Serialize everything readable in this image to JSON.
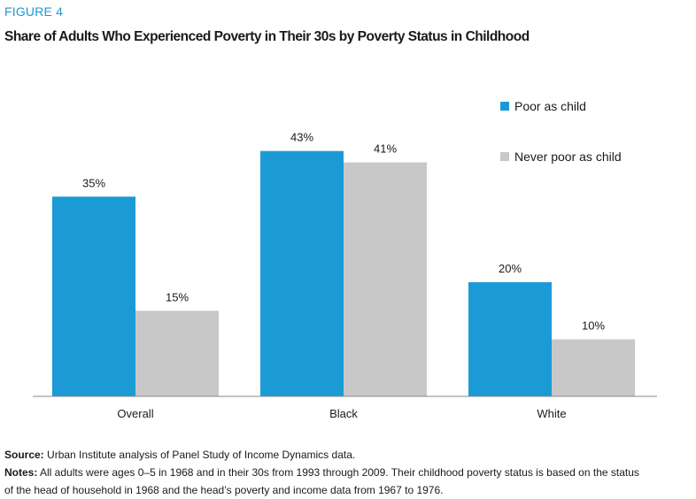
{
  "figure_label": "FIGURE 4",
  "colors": {
    "poor": "#1b9ad6",
    "never_poor": "#c8c8c8",
    "axis": "#888888"
  },
  "chart_data": {
    "type": "bar",
    "title": "Share of Adults Who Experienced Poverty in Their 30s by Poverty Status in Childhood",
    "categories": [
      "Overall",
      "Black",
      "White"
    ],
    "series": [
      {
        "name": "Poor as child",
        "values": [
          35,
          43,
          20
        ],
        "labels": [
          "35%",
          "43%",
          "20%"
        ]
      },
      {
        "name": "Never poor as child",
        "values": [
          15,
          41,
          10
        ],
        "labels": [
          "15%",
          "41%",
          "10%"
        ]
      }
    ],
    "ylim": [
      0,
      50
    ],
    "xlabel": "",
    "ylabel": "",
    "grid": false,
    "legend_position": "top-right"
  },
  "footer": {
    "source_label": "Source:",
    "source_text": "Urban Institute analysis of Panel Study of Income Dynamics data.",
    "notes_label": "Notes:",
    "notes_line1": "All adults were ages 0–5 in 1968 and in their 30s from 1993 through 2009. Their childhood poverty status is based on the status",
    "notes_line2": "of the head of household in 1968 and the head’s poverty and income data from 1967 to 1976."
  }
}
